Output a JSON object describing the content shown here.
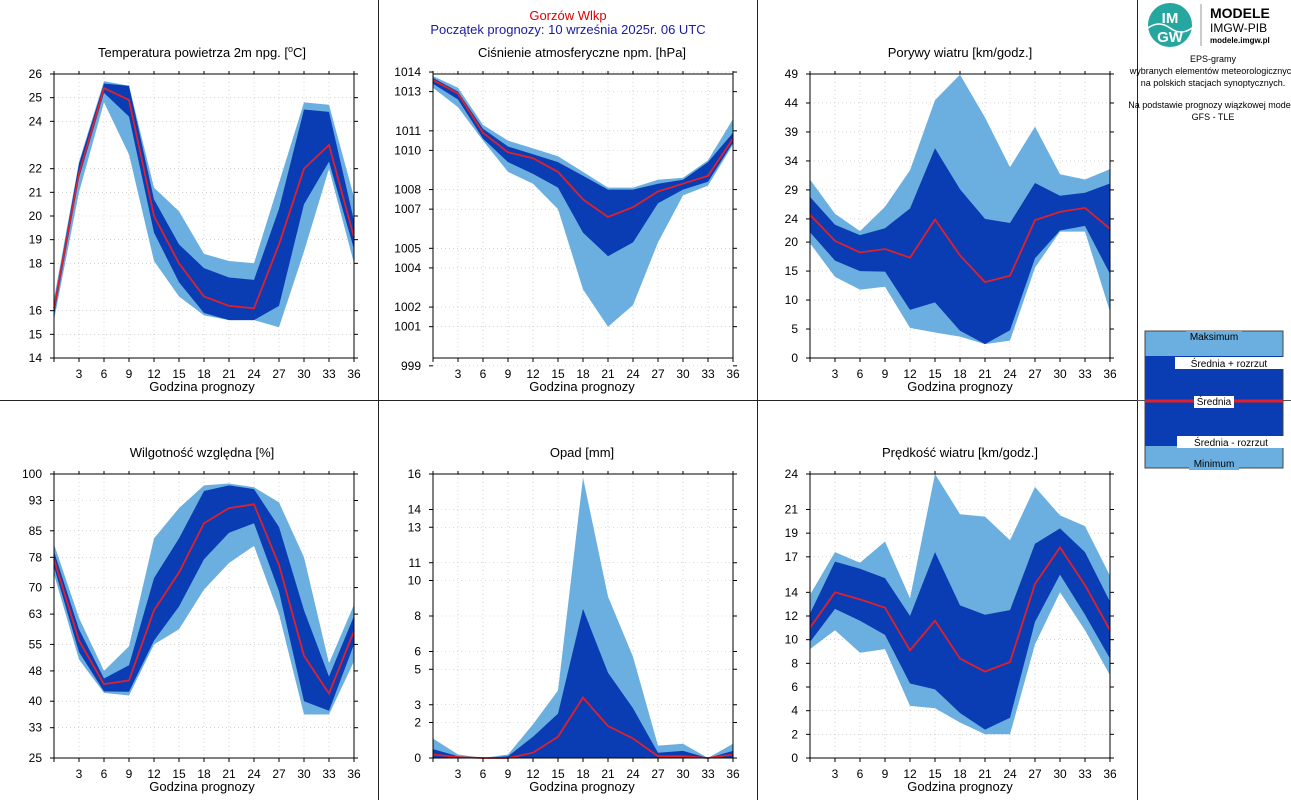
{
  "header": {
    "station": "Gorzów Wlkp",
    "forecast_start": "Początek prognozy: 10 września 2025r. 06 UTC"
  },
  "logo": {
    "line1": "MODELE",
    "line2": "IMGW-PIB",
    "url": "modele.imgw.pl",
    "badge_top": "IM",
    "badge_bottom": "GW"
  },
  "side_info": {
    "lines": [
      "EPS-gramy",
      "wybranych elementów meteorologicznych",
      "na polskich stacjach  synoptycznych.",
      "",
      "Na podstawie prognozy wiązkowej modelu",
      "GFS - TLE"
    ]
  },
  "legend": {
    "max": "Maksimum",
    "mean_plus": "Średnia + rozrzut",
    "mean": "Średnia",
    "mean_minus": "Średnia - rozrzut",
    "min": "Minimum"
  },
  "colors": {
    "outer_band": "#6aafe0",
    "inner_band": "#0a3cb4",
    "mean_line": "#e0202a",
    "header_station": "#e00000",
    "header_date": "#1a1aa0"
  },
  "chart_data": [
    {
      "type": "area",
      "title_main": "Temperatura powietrza 2m npg. [",
      "title_sup": "o",
      "title_end": "C]",
      "xlabel": "Godzina prognozy",
      "x": [
        0,
        3,
        6,
        9,
        12,
        15,
        18,
        21,
        24,
        27,
        30,
        33,
        36
      ],
      "xticks": [
        "3",
        "6",
        "9",
        "12",
        "15",
        "18",
        "21",
        "24",
        "27",
        "30",
        "33",
        "36"
      ],
      "ylim": [
        14,
        26
      ],
      "yticks": [
        14,
        15,
        16,
        18,
        19,
        20,
        21,
        22,
        24,
        25,
        26
      ],
      "series": {
        "min": [
          15.6,
          21.0,
          24.8,
          22.6,
          18.1,
          16.6,
          15.8,
          15.6,
          15.6,
          15.3,
          18.5,
          22.0,
          18.0
        ],
        "mean_minus": [
          15.8,
          21.6,
          25.2,
          24.2,
          19.3,
          17.2,
          15.9,
          15.6,
          15.6,
          16.2,
          20.5,
          22.3,
          18.6
        ],
        "mean": [
          16.1,
          21.8,
          25.4,
          24.9,
          20.0,
          18.0,
          16.6,
          16.2,
          16.1,
          18.8,
          22.0,
          23.0,
          19.1
        ],
        "mean_plus": [
          16.3,
          22.2,
          25.6,
          25.5,
          20.7,
          18.8,
          17.8,
          17.4,
          17.3,
          20.3,
          24.5,
          24.4,
          19.8
        ],
        "max": [
          16.5,
          22.3,
          25.7,
          25.5,
          21.2,
          20.2,
          18.4,
          18.1,
          18.0,
          21.4,
          24.8,
          24.7,
          20.8
        ]
      }
    },
    {
      "type": "area",
      "title_main": "Ciśnienie atmosferyczne npm. [hPa]",
      "xlabel": "Godzina prognozy",
      "x": [
        0,
        3,
        6,
        9,
        12,
        15,
        18,
        21,
        24,
        27,
        30,
        33,
        36
      ],
      "xticks": [
        "3",
        "6",
        "9",
        "12",
        "15",
        "18",
        "21",
        "24",
        "27",
        "30",
        "33",
        "36"
      ],
      "ylim": [
        999.4,
        1013.9
      ],
      "yticks": [
        999,
        1001,
        1002,
        1004,
        1005,
        1007,
        1008,
        1010,
        1011,
        1013,
        1014
      ],
      "series": {
        "min": [
          1013.2,
          1012.2,
          1010.5,
          1008.9,
          1008.3,
          1007.0,
          1002.9,
          1001.0,
          1002.1,
          1005.3,
          1007.7,
          1008.2,
          1010.3
        ],
        "mean_minus": [
          1013.4,
          1012.6,
          1010.6,
          1009.4,
          1008.8,
          1008.1,
          1005.8,
          1004.6,
          1005.3,
          1007.3,
          1008.0,
          1008.4,
          1010.4
        ],
        "mean": [
          1013.6,
          1012.9,
          1010.9,
          1009.9,
          1009.6,
          1008.9,
          1007.5,
          1006.6,
          1007.1,
          1007.9,
          1008.3,
          1008.7,
          1010.6
        ],
        "mean_plus": [
          1013.7,
          1013.0,
          1011.1,
          1010.2,
          1009.8,
          1009.4,
          1008.7,
          1008.0,
          1008.0,
          1008.3,
          1008.5,
          1009.4,
          1010.9
        ],
        "max": [
          1013.8,
          1013.2,
          1011.3,
          1010.5,
          1010.1,
          1009.7,
          1008.9,
          1008.1,
          1008.1,
          1008.5,
          1008.6,
          1009.5,
          1011.6
        ]
      }
    },
    {
      "type": "area",
      "title_main": "Porywy wiatru [km/godz.]",
      "xlabel": "Godzina prognozy",
      "x": [
        0,
        3,
        6,
        9,
        12,
        15,
        18,
        21,
        24,
        27,
        30,
        33,
        36
      ],
      "xticks": [
        "3",
        "6",
        "9",
        "12",
        "15",
        "18",
        "21",
        "24",
        "27",
        "30",
        "33",
        "36"
      ],
      "ylim": [
        0,
        49
      ],
      "yticks": [
        0,
        5,
        10,
        15,
        20,
        24,
        29,
        34,
        39,
        44,
        49
      ],
      "series": {
        "min": [
          19.8,
          14.0,
          11.8,
          12.3,
          5.2,
          4.4,
          3.7,
          2.4,
          3.0,
          15.6,
          21.8,
          21.8,
          8.0
        ],
        "mean_minus": [
          21.7,
          16.8,
          15.0,
          14.9,
          8.3,
          9.6,
          4.7,
          2.4,
          4.8,
          17.2,
          22.0,
          22.8,
          14.5
        ],
        "mean": [
          24.7,
          20.2,
          18.2,
          18.8,
          17.3,
          23.9,
          17.7,
          13.1,
          14.2,
          23.8,
          25.2,
          25.9,
          22.3
        ],
        "mean_plus": [
          27.8,
          23.0,
          21.2,
          22.4,
          25.8,
          36.2,
          29.1,
          24.0,
          23.3,
          30.2,
          28.0,
          28.5,
          30.1
        ],
        "max": [
          30.8,
          24.9,
          21.9,
          26.1,
          32.4,
          44.5,
          48.9,
          41.5,
          32.9,
          39.9,
          31.7,
          30.8,
          32.6
        ]
      }
    },
    {
      "type": "area",
      "title_main": "Wilgotność względna [%]",
      "xlabel": "Godzina prognozy",
      "x": [
        0,
        3,
        6,
        9,
        12,
        15,
        18,
        21,
        24,
        27,
        30,
        33,
        36
      ],
      "xticks": [
        "3",
        "6",
        "9",
        "12",
        "15",
        "18",
        "21",
        "24",
        "27",
        "30",
        "33",
        "36"
      ],
      "ylim": [
        25,
        100
      ],
      "yticks": [
        25,
        33,
        40,
        48,
        55,
        63,
        70,
        78,
        85,
        93,
        100
      ],
      "series": {
        "min": [
          73.5,
          51.0,
          42.2,
          41.5,
          55.0,
          59.0,
          69.5,
          76.5,
          81.0,
          63.0,
          36.5,
          36.5,
          50.5
        ],
        "mean_minus": [
          75.5,
          53.0,
          42.6,
          42.5,
          56.0,
          65.0,
          77.5,
          84.5,
          87.0,
          69.0,
          40.0,
          37.5,
          55.0
        ],
        "mean": [
          77.5,
          56.0,
          44.5,
          45.5,
          64.0,
          74.0,
          87.0,
          91.0,
          92.0,
          76.0,
          52.0,
          42.0,
          58.5
        ],
        "mean_plus": [
          79.5,
          59.0,
          46.0,
          49.5,
          72.5,
          83.0,
          95.5,
          97.0,
          96.0,
          86.0,
          64.0,
          46.5,
          62.5
        ],
        "max": [
          81.5,
          62.0,
          48.0,
          54.5,
          83.0,
          91.0,
          97.0,
          97.5,
          96.5,
          92.5,
          78.0,
          50.0,
          65.5
        ]
      }
    },
    {
      "type": "area",
      "title_main": "Opad [mm]",
      "xlabel": "Godzina prognozy",
      "x": [
        0,
        3,
        6,
        9,
        12,
        15,
        18,
        21,
        24,
        27,
        30,
        33,
        36
      ],
      "xticks": [
        "3",
        "6",
        "9",
        "12",
        "15",
        "18",
        "21",
        "24",
        "27",
        "30",
        "33",
        "36"
      ],
      "ylim": [
        0,
        16
      ],
      "yticks": [
        0,
        2,
        3,
        5,
        6,
        8,
        10,
        11,
        13,
        14,
        16
      ],
      "series": {
        "min": [
          0.0,
          0.0,
          0.0,
          0.0,
          0.0,
          0.0,
          0.0,
          0.0,
          0.0,
          0.0,
          0.0,
          0.0,
          0.0
        ],
        "mean_minus": [
          0.0,
          0.0,
          0.0,
          0.0,
          0.0,
          0.0,
          0.0,
          0.0,
          0.0,
          0.0,
          0.0,
          0.0,
          0.0
        ],
        "mean": [
          0.2,
          0.05,
          0.0,
          0.0,
          0.3,
          1.2,
          3.4,
          1.8,
          1.1,
          0.1,
          0.1,
          0.0,
          0.2
        ],
        "mean_plus": [
          0.5,
          0.1,
          0.0,
          0.1,
          1.2,
          2.5,
          8.4,
          4.8,
          2.8,
          0.3,
          0.4,
          0.0,
          0.4
        ],
        "max": [
          1.1,
          0.2,
          0.0,
          0.2,
          1.9,
          3.8,
          15.8,
          9.1,
          5.7,
          0.7,
          0.8,
          0.0,
          0.8
        ]
      }
    },
    {
      "type": "area",
      "title_main": "Prędkość wiatru [km/godz.]",
      "xlabel": "Godzina prognozy",
      "x": [
        0,
        3,
        6,
        9,
        12,
        15,
        18,
        21,
        24,
        27,
        30,
        33,
        36
      ],
      "xticks": [
        "3",
        "6",
        "9",
        "12",
        "15",
        "18",
        "21",
        "24",
        "27",
        "30",
        "33",
        "36"
      ],
      "ylim": [
        0,
        24
      ],
      "yticks": [
        0,
        2,
        4,
        6,
        8,
        10,
        12,
        14,
        17,
        19,
        21,
        24
      ],
      "ytick_labels": [
        "0",
        "2",
        "4",
        "6",
        "8",
        "10",
        "12",
        "14",
        "17",
        "19",
        "21",
        "24"
      ],
      "series": {
        "min": [
          9.2,
          10.8,
          8.9,
          9.2,
          4.4,
          4.2,
          3.0,
          2.0,
          2.0,
          9.6,
          14.0,
          10.8,
          7.0
        ],
        "mean_minus": [
          9.8,
          12.6,
          11.6,
          10.4,
          6.3,
          5.8,
          3.8,
          2.4,
          3.4,
          11.5,
          15.5,
          12.1,
          8.4
        ],
        "mean": [
          11.0,
          14.0,
          13.4,
          12.7,
          9.1,
          11.6,
          8.4,
          7.3,
          8.1,
          14.7,
          17.8,
          14.6,
          10.8
        ],
        "mean_plus": [
          12.2,
          16.6,
          16.0,
          15.2,
          12.0,
          17.4,
          12.9,
          12.1,
          12.5,
          18.1,
          19.4,
          17.4,
          13.2
        ],
        "max": [
          13.8,
          17.4,
          16.5,
          18.3,
          13.5,
          24.0,
          20.6,
          20.4,
          18.4,
          22.9,
          20.5,
          19.6,
          15.4
        ]
      }
    }
  ]
}
